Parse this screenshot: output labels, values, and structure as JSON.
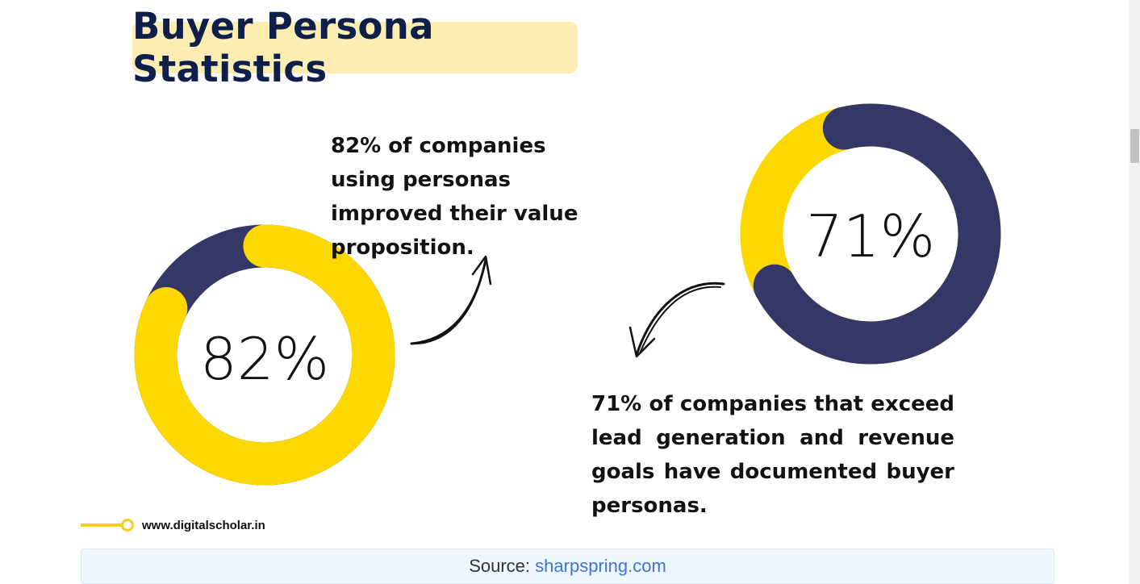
{
  "title": "Buyer Persona Statistics",
  "stats": [
    {
      "percent_label": "82%",
      "value": 82,
      "description": "82% of companies using personas improved their value proposition."
    },
    {
      "percent_label": "71%",
      "value": 71,
      "description": "71% of companies that exceed lead generation and revenue goals have documented buyer personas."
    }
  ],
  "colors": {
    "yellow": "#fcd800",
    "navy": "#353866",
    "title_bg": "#fdedb2",
    "title_text": "#0e1f4a",
    "link": "#3f73d8"
  },
  "watermark": "www.digitalscholar.in",
  "source": {
    "prefix": "Source:",
    "link_text": "sharpspring.com"
  }
}
